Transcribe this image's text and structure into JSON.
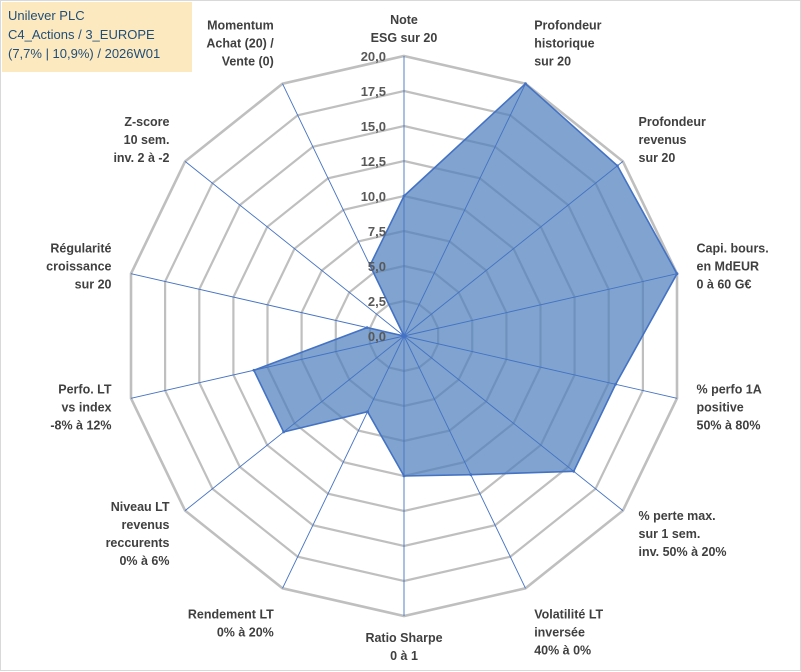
{
  "header": {
    "line1": "Unilever PLC",
    "line2": "C4_Actions / 3_EUROPE",
    "line3": "(7,7% | 10,9%) / 2026W01"
  },
  "chart_data": {
    "type": "radar",
    "title": "",
    "rmin": 0,
    "rmax": 20,
    "tick_step": 2.5,
    "tick_labels": [
      "0,0",
      "2,5",
      "5,0",
      "7,5",
      "10,0",
      "12,5",
      "15,0",
      "17,5",
      "20,0"
    ],
    "grid": true,
    "legend": "none",
    "colors": {
      "fill": "#4f81bd",
      "line": "#4472c4",
      "grid": "#bfbfbf",
      "spoke": "#4472c4"
    },
    "axes": [
      {
        "label": [
          "Note",
          "ESG sur 20"
        ]
      },
      {
        "label": [
          "Profondeur",
          "historique",
          "sur 20"
        ]
      },
      {
        "label": [
          "Profondeur",
          "revenus",
          "sur 20"
        ]
      },
      {
        "label": [
          "Capi. bours.",
          "en MdEUR",
          "0 à 60 G€"
        ]
      },
      {
        "label": [
          "% perfo 1A",
          "positive",
          "50% à 80%"
        ]
      },
      {
        "label": [
          "% perte max.",
          "sur 1 sem.",
          "inv. 50% à 20%"
        ]
      },
      {
        "label": [
          "Volatilité LT",
          "inversée",
          "40% à 0%"
        ]
      },
      {
        "label": [
          "Ratio Sharpe",
          "0 à 1"
        ]
      },
      {
        "label": [
          "Rendement LT",
          "0% à 20%"
        ]
      },
      {
        "label": [
          "Niveau LT",
          "revenus",
          "reccurents",
          "0% à 6%"
        ]
      },
      {
        "label": [
          "Perfo. LT",
          "vs index",
          "-8% à 12%"
        ]
      },
      {
        "label": [
          "Régularité",
          "croissance",
          "sur 20"
        ]
      },
      {
        "label": [
          "Z-score",
          "10 sem.",
          "inv. 2 à -2"
        ]
      },
      {
        "label": [
          "Momentum",
          "Achat (20) /",
          "Vente (0)"
        ]
      }
    ],
    "series": [
      {
        "name": "",
        "values": [
          10,
          20,
          19.5,
          20,
          15.5,
          15.5,
          11,
          10,
          6,
          11,
          11,
          2.7,
          0,
          5.6
        ]
      }
    ]
  }
}
